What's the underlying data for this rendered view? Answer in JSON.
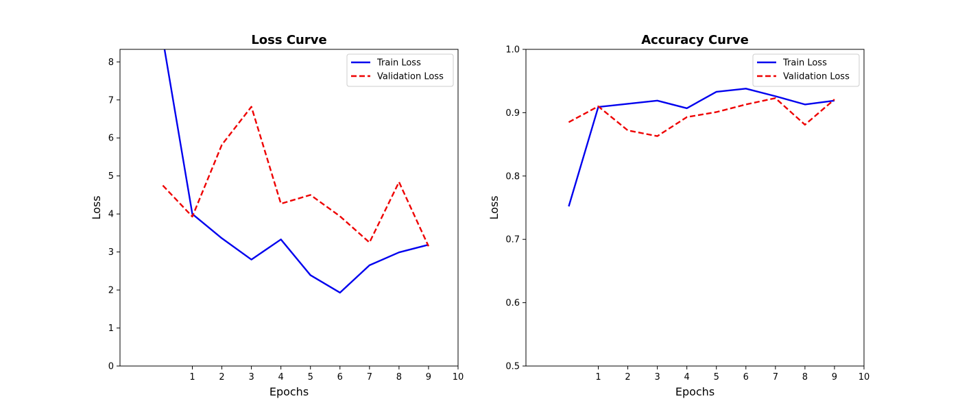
{
  "chart_data": [
    {
      "type": "line",
      "title": "Loss Curve",
      "xlabel": "Epochs",
      "ylabel": "Loss",
      "xlim": [
        -1.45,
        10
      ],
      "ylim": [
        0,
        8.33
      ],
      "xticks": [
        1,
        2,
        3,
        4,
        5,
        6,
        7,
        8,
        9,
        10
      ],
      "yticks": [
        0,
        1,
        2,
        3,
        4,
        5,
        6,
        7,
        8
      ],
      "x": [
        0,
        1,
        2,
        3,
        4,
        5,
        6,
        7,
        8,
        9
      ],
      "grid": false,
      "legend": "top-right",
      "series": [
        {
          "name": "Train Loss",
          "color": "#0000ee",
          "style": "solid",
          "values": [
            8.6,
            4.0,
            3.36,
            2.8,
            3.33,
            2.39,
            1.93,
            2.65,
            2.99,
            3.19
          ]
        },
        {
          "name": "Validation Loss",
          "color": "#ee0000",
          "style": "dashed",
          "values": [
            4.75,
            3.93,
            5.82,
            6.82,
            4.27,
            4.5,
            3.94,
            3.25,
            4.84,
            3.15
          ]
        }
      ]
    },
    {
      "type": "line",
      "title": "Accuracy Curve",
      "xlabel": "Epochs",
      "ylabel": "Loss",
      "xlim": [
        -1.45,
        10
      ],
      "ylim": [
        0.5,
        1.0
      ],
      "xticks": [
        1,
        2,
        3,
        4,
        5,
        6,
        7,
        8,
        9,
        10
      ],
      "yticks": [
        0.5,
        0.6,
        0.7,
        0.8,
        0.9,
        1.0
      ],
      "x": [
        0,
        1,
        2,
        3,
        4,
        5,
        6,
        7,
        8,
        9
      ],
      "grid": false,
      "legend": "top-right",
      "series": [
        {
          "name": "Train Loss",
          "color": "#0000ee",
          "style": "solid",
          "values": [
            0.752,
            0.909,
            0.914,
            0.919,
            0.907,
            0.933,
            0.938,
            0.926,
            0.913,
            0.919
          ]
        },
        {
          "name": "Validation Loss",
          "color": "#ee0000",
          "style": "dashed",
          "values": [
            0.885,
            0.91,
            0.872,
            0.863,
            0.893,
            0.901,
            0.913,
            0.923,
            0.881,
            0.921
          ]
        }
      ]
    }
  ]
}
